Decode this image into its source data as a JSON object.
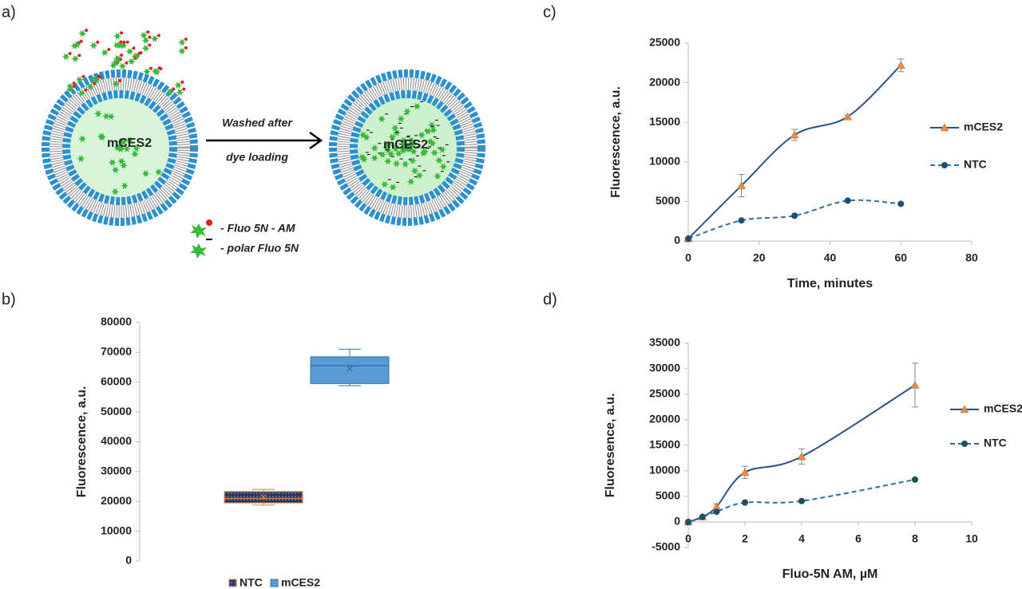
{
  "panel_labels": [
    "a)",
    "b)",
    "c)",
    "d)"
  ],
  "diagram": {
    "vesicle_left": "mCES2",
    "vesicle_right": "mCES2",
    "arrow_top": "Washed after",
    "arrow_bottom": "dye loading",
    "legend": [
      "- Fluo 5N - AM",
      "- polar Fluo 5N"
    ]
  },
  "chart_data": [
    {
      "type": "box",
      "ylabel": "Fluorescence,  a.u.",
      "ylim": [
        0,
        80000
      ],
      "yticks": [
        0,
        10000,
        20000,
        30000,
        40000,
        50000,
        60000,
        70000,
        80000
      ],
      "legend": "bottom",
      "series": [
        {
          "name": "NTC",
          "color": "#1f3864",
          "edge": "#e07b39",
          "min": 18800,
          "q1": 19500,
          "median": 21000,
          "q3": 23300,
          "max": 24000,
          "mean": 21500
        },
        {
          "name": "mCES2",
          "color": "#5b9bd5",
          "edge": "#2e75b6",
          "min": 58800,
          "q1": 59500,
          "median": 65500,
          "q3": 68500,
          "max": 71000,
          "mean": 64500
        }
      ]
    },
    {
      "type": "line",
      "ylabel": "Fluorescence, a.u.",
      "xlabel": "Time, minutes",
      "x": [
        0,
        15,
        30,
        45,
        60
      ],
      "xlim": [
        0,
        80
      ],
      "xticks": [
        0,
        20,
        40,
        60,
        80
      ],
      "ylim": [
        0,
        25000
      ],
      "yticks": [
        0,
        5000,
        10000,
        15000,
        20000,
        25000
      ],
      "legend": "right",
      "series": [
        {
          "name": "mCES2",
          "color": "#2e4f8f",
          "marker": "triangle",
          "marker_color": "#f08c3c",
          "line_style": "solid",
          "values": [
            300,
            7000,
            13400,
            15700,
            22200
          ],
          "errors": [
            0,
            1400,
            700,
            200,
            800
          ]
        },
        {
          "name": "NTC",
          "color": "#2e6ea8",
          "marker": "circle",
          "marker_color": "#1f4e79",
          "line_style": "dashed",
          "values": [
            300,
            2600,
            3200,
            5100,
            4700
          ],
          "errors": [
            0,
            0,
            0,
            0,
            0
          ]
        }
      ]
    },
    {
      "type": "line",
      "ylabel": "Fluoresence, a.u.",
      "xlabel": "Fluo-5N AM, µM",
      "x": [
        0,
        0.5,
        1,
        2,
        4,
        8
      ],
      "xlim": [
        0,
        10
      ],
      "xticks": [
        0,
        2,
        4,
        6,
        8,
        10
      ],
      "ylim": [
        -5000,
        35000
      ],
      "yticks": [
        -5000,
        0,
        5000,
        10000,
        15000,
        20000,
        25000,
        30000,
        35000
      ],
      "legend": "right",
      "series": [
        {
          "name": "mCES2",
          "color": "#2e4f8f",
          "marker": "triangle",
          "marker_color": "#f08c3c",
          "line_style": "solid",
          "values": [
            0,
            1000,
            3000,
            9700,
            12800,
            26800
          ],
          "errors": [
            0,
            300,
            500,
            1200,
            1500,
            4300
          ]
        },
        {
          "name": "NTC",
          "color": "#2e6ea8",
          "marker": "circle",
          "marker_color": "#1f4e5e",
          "line_style": "dashed",
          "values": [
            0,
            1000,
            2000,
            3800,
            4100,
            8300
          ],
          "errors": [
            0,
            0,
            0,
            0,
            0,
            0
          ]
        }
      ]
    }
  ]
}
